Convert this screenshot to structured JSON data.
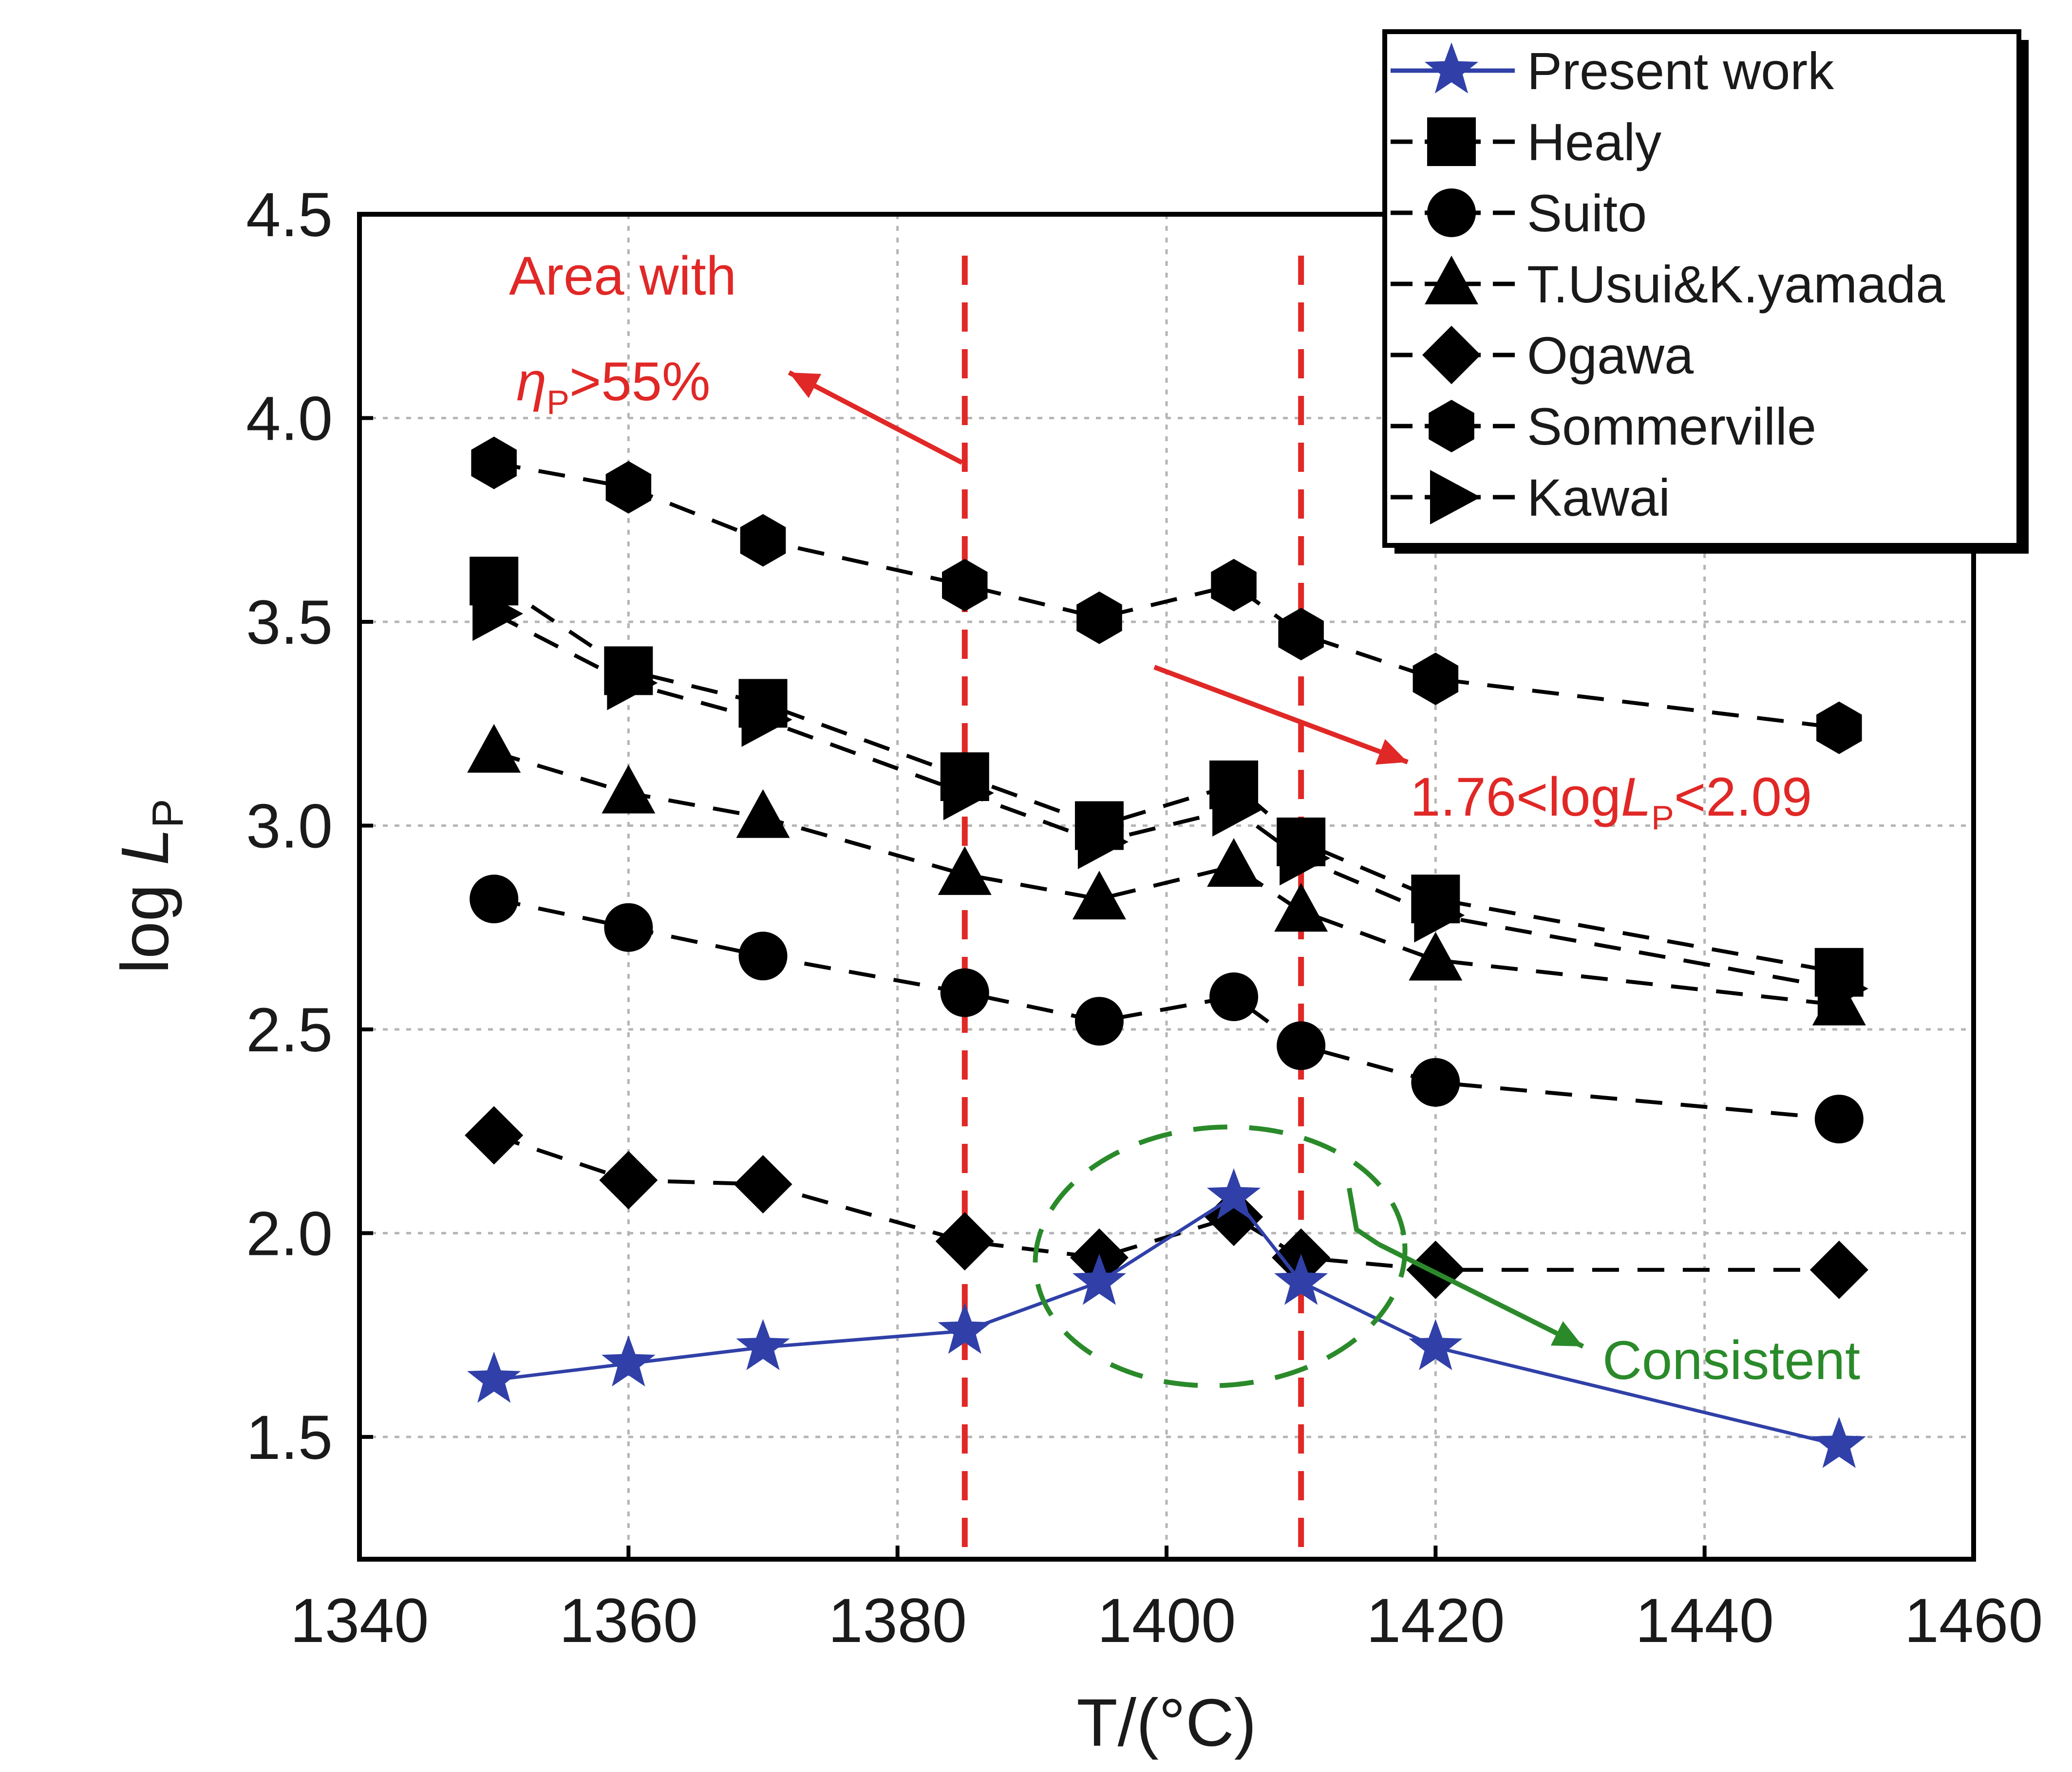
{
  "colors": {
    "present": "#3040a8",
    "others": "#000000",
    "annotation_red": "#e02826",
    "annotation_green": "#2a8a2a",
    "grid": "#b5b5b5"
  },
  "chart_data": {
    "type": "line",
    "xlabel": "T/(°C)",
    "ylabel_prefix": "log ",
    "ylabel_var": "L",
    "ylabel_sub": "P",
    "xlim": [
      1340,
      1460
    ],
    "ylim": [
      1.2,
      4.5
    ],
    "xticks": [
      "1340",
      "1360",
      "1380",
      "1400",
      "1420",
      "1440",
      "1460"
    ],
    "yticks": [
      "1.5",
      "2.0",
      "2.5",
      "3.0",
      "3.5",
      "4.0",
      "4.5"
    ],
    "x": [
      1350,
      1360,
      1370,
      1385,
      1395,
      1405,
      1410,
      1420,
      1450
    ],
    "series": [
      {
        "name": "Present work",
        "marker": "star",
        "style": "solid",
        "values": [
          1.64,
          1.68,
          1.72,
          1.76,
          1.88,
          2.09,
          1.88,
          1.72,
          1.48
        ]
      },
      {
        "name": "Healy",
        "marker": "square",
        "style": "dashed",
        "values": [
          3.6,
          3.38,
          3.3,
          3.12,
          3.0,
          3.1,
          2.96,
          2.82,
          2.64
        ]
      },
      {
        "name": "Suito",
        "marker": "circle",
        "style": "dashed",
        "values": [
          2.82,
          2.75,
          2.68,
          2.59,
          2.52,
          2.58,
          2.46,
          2.37,
          2.28
        ]
      },
      {
        "name": "T.Usui&K.yamada",
        "marker": "triangle",
        "style": "dashed",
        "values": [
          3.18,
          3.08,
          3.02,
          2.88,
          2.82,
          2.9,
          2.79,
          2.67,
          2.56
        ]
      },
      {
        "name": "Ogawa",
        "marker": "diamond",
        "style": "dashed",
        "values": [
          2.24,
          2.13,
          2.12,
          1.98,
          1.94,
          2.04,
          1.94,
          1.91,
          1.91
        ]
      },
      {
        "name": "Sommerville",
        "marker": "hexagon",
        "style": "dashed",
        "values": [
          3.89,
          3.83,
          3.7,
          3.59,
          3.51,
          3.59,
          3.47,
          3.36,
          3.24
        ]
      },
      {
        "name": "Kawai",
        "marker": "right-triangle",
        "style": "dashed",
        "values": [
          3.52,
          3.35,
          3.26,
          3.08,
          2.96,
          3.04,
          2.92,
          2.78,
          2.6
        ]
      }
    ],
    "reference_lines_x": [
      1385,
      1410
    ],
    "annotations": {
      "area_line1": "Area with",
      "area_eta": "η",
      "area_eta_sub": "P",
      "area_gt": ">55%",
      "range_prefix": "1.76<log",
      "range_var": "L",
      "range_sub": "P",
      "range_suffix": "<2.09",
      "consistent": "Consistent"
    },
    "legend_position": "top-right"
  }
}
